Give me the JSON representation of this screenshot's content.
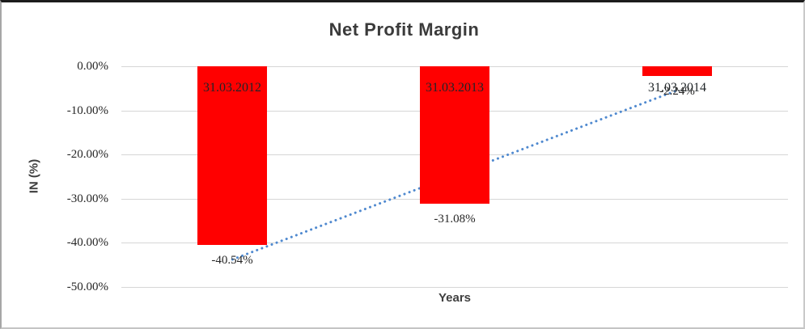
{
  "chart_data": {
    "type": "bar",
    "title": "Net Profit Margin",
    "xlabel": "Years",
    "ylabel": "IN (%)",
    "categories": [
      "31.03.2012",
      "31.03.2013",
      "31.03.2014"
    ],
    "series": [
      {
        "name": "Net Profit Margin",
        "values": [
          -40.54,
          -31.08,
          -2.24
        ]
      }
    ],
    "data_labels": [
      "-40.54%",
      "-31.08%",
      "-2.24%"
    ],
    "yticks": {
      "values": [
        0,
        -10,
        -20,
        -30,
        -40,
        -50
      ],
      "labels": [
        "0.00%",
        "-10.00%",
        "-20.00%",
        "-30.00%",
        "-40.00%",
        "-50.00%"
      ]
    },
    "ylim": [
      0,
      -50
    ],
    "grid": true,
    "legend": "none",
    "bar_color": "#ff0000",
    "gridline_color": "#d6d6d6",
    "title_color": "#3b3b3b",
    "trendline": {
      "type": "linear",
      "style": "dotted",
      "color": "#4f89cf"
    }
  }
}
